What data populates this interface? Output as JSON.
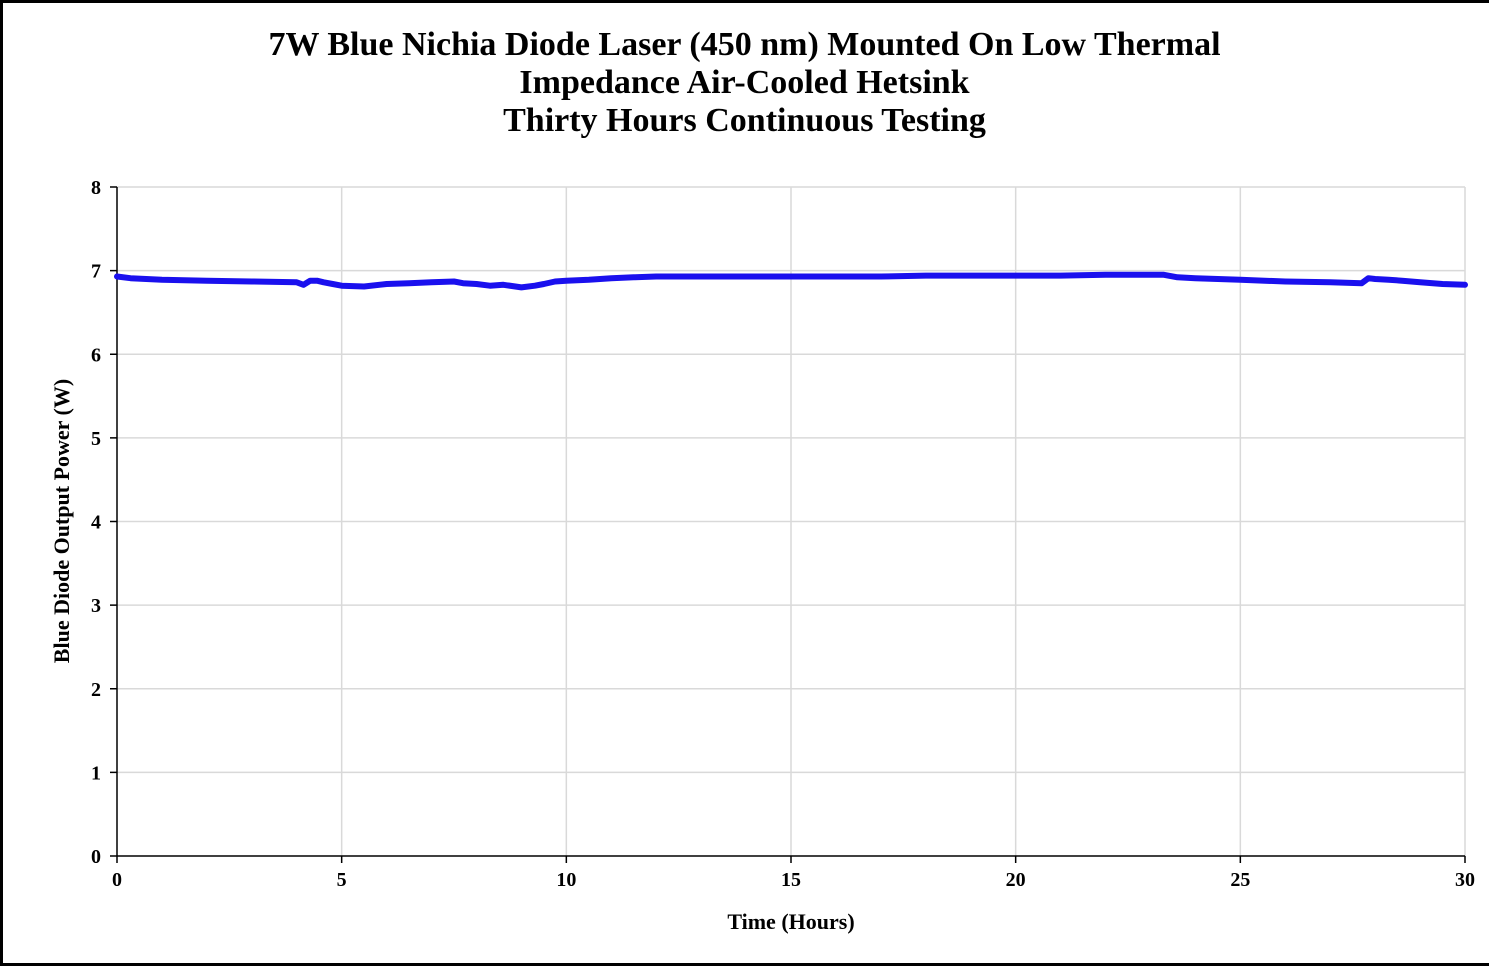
{
  "chart_data": {
    "type": "line",
    "title_lines": [
      "7W Blue Nichia Diode Laser (450 nm) Mounted On Low Thermal",
      "Impedance Air-Cooled Hetsink",
      "Thirty Hours Continuous Testing"
    ],
    "xlabel": "Time (Hours)",
    "ylabel": "Blue Diode Output Power (W)",
    "xlim": [
      0,
      30
    ],
    "ylim": [
      0,
      8
    ],
    "x_ticks": [
      0,
      5,
      10,
      15,
      20,
      25,
      30
    ],
    "y_ticks": [
      0,
      1,
      2,
      3,
      4,
      5,
      6,
      7,
      8
    ],
    "grid": true,
    "series_color": "#1a10ee",
    "series": [
      {
        "x": [
          0,
          0.3,
          1,
          2,
          3,
          4,
          4.15,
          4.3,
          4.45,
          4.6,
          4.8,
          5,
          5.5,
          6,
          6.5,
          7,
          7.5,
          7.7,
          8,
          8.3,
          8.6,
          9,
          9.3,
          9.5,
          9.75,
          10,
          10.5,
          11,
          11.5,
          12,
          13,
          14,
          15,
          16,
          17,
          18,
          19,
          20,
          21,
          22,
          23,
          23.3,
          23.6,
          24,
          25,
          26,
          27,
          27.7,
          27.85,
          28,
          28.3,
          28.6,
          29,
          29.5,
          30
        ],
        "y": [
          6.93,
          6.91,
          6.89,
          6.88,
          6.87,
          6.86,
          6.83,
          6.88,
          6.88,
          6.86,
          6.84,
          6.82,
          6.81,
          6.84,
          6.85,
          6.86,
          6.87,
          6.85,
          6.84,
          6.82,
          6.83,
          6.8,
          6.82,
          6.84,
          6.87,
          6.88,
          6.89,
          6.91,
          6.92,
          6.93,
          6.93,
          6.93,
          6.93,
          6.93,
          6.93,
          6.94,
          6.94,
          6.94,
          6.94,
          6.95,
          6.95,
          6.95,
          6.92,
          6.91,
          6.89,
          6.87,
          6.86,
          6.85,
          6.91,
          6.9,
          6.89,
          6.88,
          6.86,
          6.84,
          6.83
        ]
      }
    ]
  }
}
